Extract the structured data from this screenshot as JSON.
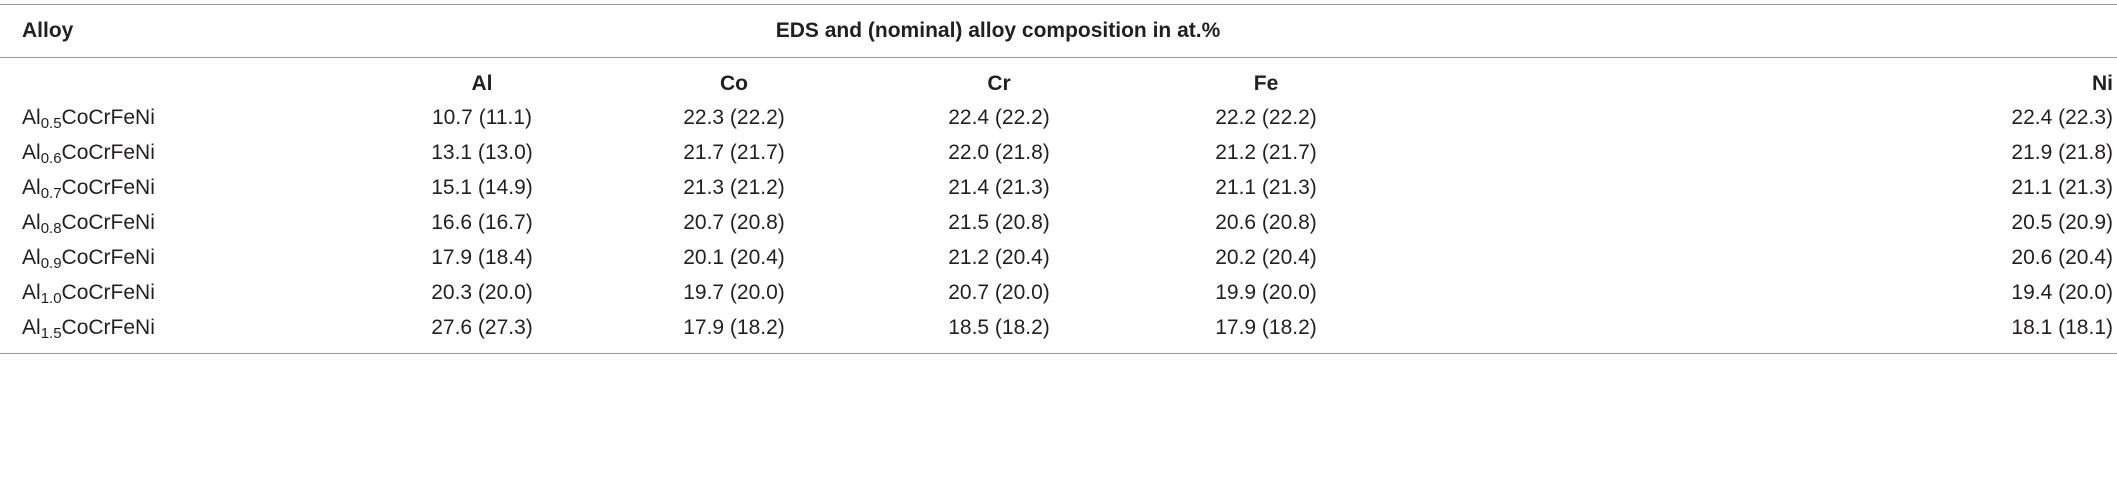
{
  "table": {
    "header": {
      "alloy": "Alloy",
      "composition": "EDS and (nominal) alloy composition in at.%"
    },
    "columns": [
      "Al",
      "Co",
      "Cr",
      "Fe",
      "Ni"
    ],
    "rows": [
      {
        "alloy": {
          "base": "Al",
          "sub": "0.5",
          "rest": "CoCrFeNi"
        },
        "values": [
          "10.7 (11.1)",
          "22.3 (22.2)",
          "22.4 (22.2)",
          "22.2 (22.2)",
          "22.4 (22.3)"
        ]
      },
      {
        "alloy": {
          "base": "Al",
          "sub": "0.6",
          "rest": "CoCrFeNi"
        },
        "values": [
          "13.1 (13.0)",
          "21.7 (21.7)",
          "22.0 (21.8)",
          "21.2 (21.7)",
          "21.9 (21.8)"
        ]
      },
      {
        "alloy": {
          "base": "Al",
          "sub": "0.7",
          "rest": "CoCrFeNi"
        },
        "values": [
          "15.1 (14.9)",
          "21.3 (21.2)",
          "21.4 (21.3)",
          "21.1 (21.3)",
          "21.1 (21.3)"
        ]
      },
      {
        "alloy": {
          "base": "Al",
          "sub": "0.8",
          "rest": "CoCrFeNi"
        },
        "values": [
          "16.6 (16.7)",
          "20.7 (20.8)",
          "21.5 (20.8)",
          "20.6 (20.8)",
          "20.5 (20.9)"
        ]
      },
      {
        "alloy": {
          "base": "Al",
          "sub": "0.9",
          "rest": "CoCrFeNi"
        },
        "values": [
          "17.9 (18.4)",
          "20.1 (20.4)",
          "21.2 (20.4)",
          "20.2 (20.4)",
          "20.6 (20.4)"
        ]
      },
      {
        "alloy": {
          "base": "Al",
          "sub": "1.0",
          "rest": "CoCrFeNi"
        },
        "values": [
          "20.3 (20.0)",
          "19.7 (20.0)",
          "20.7 (20.0)",
          "19.9 (20.0)",
          "19.4 (20.0)"
        ]
      },
      {
        "alloy": {
          "base": "Al",
          "sub": "1.5",
          "rest": "CoCrFeNi"
        },
        "values": [
          "27.6 (27.3)",
          "17.9 (18.2)",
          "18.5 (18.2)",
          "17.9 (18.2)",
          "18.1 (18.1)"
        ]
      }
    ]
  }
}
